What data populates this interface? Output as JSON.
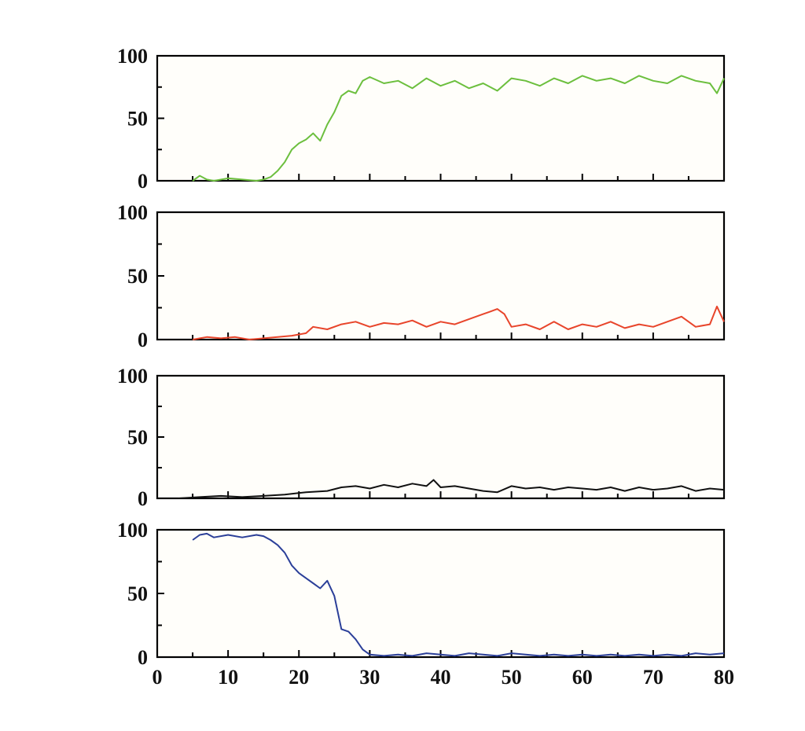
{
  "chart_data": [
    {
      "type": "line",
      "xlim": [
        0,
        80
      ],
      "ylim": [
        0,
        100
      ],
      "xlabel": "",
      "ylabel": "",
      "yticks": [
        "0",
        "50",
        "100"
      ],
      "grid": false,
      "series": [
        {
          "color": "#6cbf3e",
          "x": [
            5,
            6,
            7,
            8,
            10,
            12,
            14,
            15,
            16,
            17,
            18,
            19,
            20,
            21,
            22,
            23,
            24,
            25,
            26,
            27,
            28,
            29,
            30,
            32,
            34,
            36,
            38,
            40,
            42,
            44,
            46,
            48,
            50,
            52,
            54,
            56,
            58,
            60,
            62,
            64,
            66,
            68,
            70,
            72,
            74,
            76,
            78,
            79,
            80
          ],
          "y": [
            0,
            4,
            1,
            0,
            2,
            1,
            0,
            1,
            3,
            8,
            15,
            25,
            30,
            33,
            38,
            32,
            45,
            55,
            68,
            72,
            70,
            80,
            83,
            78,
            80,
            74,
            82,
            76,
            80,
            74,
            78,
            72,
            82,
            80,
            76,
            82,
            78,
            84,
            80,
            82,
            78,
            84,
            80,
            78,
            84,
            80,
            78,
            70,
            82
          ]
        }
      ]
    },
    {
      "type": "line",
      "xlim": [
        0,
        80
      ],
      "ylim": [
        0,
        100
      ],
      "xlabel": "",
      "ylabel": "",
      "yticks": [
        "0",
        "50",
        "100"
      ],
      "grid": false,
      "series": [
        {
          "color": "#e8452b",
          "x": [
            5,
            7,
            9,
            11,
            13,
            15,
            17,
            19,
            21,
            22,
            24,
            26,
            28,
            30,
            32,
            34,
            36,
            38,
            40,
            42,
            44,
            46,
            47,
            48,
            49,
            50,
            52,
            54,
            56,
            58,
            60,
            62,
            64,
            66,
            68,
            70,
            72,
            74,
            76,
            78,
            79,
            80
          ],
          "y": [
            0,
            2,
            1,
            2,
            0,
            1,
            2,
            3,
            5,
            10,
            8,
            12,
            14,
            10,
            13,
            12,
            15,
            10,
            14,
            12,
            16,
            20,
            22,
            24,
            20,
            10,
            12,
            8,
            14,
            8,
            12,
            10,
            14,
            9,
            12,
            10,
            14,
            18,
            10,
            12,
            26,
            14
          ]
        }
      ]
    },
    {
      "type": "line",
      "xlim": [
        0,
        80
      ],
      "ylim": [
        0,
        100
      ],
      "xlabel": "",
      "ylabel": "",
      "yticks": [
        "0",
        "50",
        "100"
      ],
      "grid": false,
      "series": [
        {
          "color": "#111111",
          "x": [
            3,
            6,
            9,
            12,
            15,
            18,
            21,
            24,
            26,
            28,
            30,
            32,
            34,
            36,
            38,
            39,
            40,
            42,
            44,
            46,
            48,
            50,
            52,
            54,
            56,
            58,
            60,
            62,
            64,
            66,
            68,
            70,
            72,
            74,
            76,
            78,
            80
          ],
          "y": [
            0,
            1,
            2,
            1,
            2,
            3,
            5,
            6,
            9,
            10,
            8,
            11,
            9,
            12,
            10,
            15,
            9,
            10,
            8,
            6,
            5,
            10,
            8,
            9,
            7,
            9,
            8,
            7,
            9,
            6,
            9,
            7,
            8,
            10,
            6,
            8,
            7
          ]
        }
      ]
    },
    {
      "type": "line",
      "xlim": [
        0,
        80
      ],
      "ylim": [
        0,
        100
      ],
      "xlabel": "",
      "ylabel": "",
      "xticks": [
        "0",
        "10",
        "20",
        "30",
        "40",
        "50",
        "60",
        "70",
        "80"
      ],
      "yticks": [
        "0",
        "50",
        "100"
      ],
      "grid": false,
      "series": [
        {
          "color": "#2b3f99",
          "x": [
            5,
            6,
            7,
            8,
            10,
            12,
            14,
            15,
            16,
            17,
            18,
            19,
            20,
            21,
            22,
            23,
            24,
            25,
            26,
            27,
            28,
            29,
            30,
            32,
            34,
            36,
            38,
            40,
            42,
            44,
            46,
            48,
            50,
            52,
            54,
            56,
            58,
            60,
            62,
            64,
            66,
            68,
            70,
            72,
            74,
            76,
            78,
            80
          ],
          "y": [
            92,
            96,
            97,
            94,
            96,
            94,
            96,
            95,
            92,
            88,
            82,
            72,
            66,
            62,
            58,
            54,
            60,
            48,
            22,
            20,
            14,
            6,
            2,
            1,
            2,
            1,
            3,
            2,
            1,
            3,
            2,
            1,
            3,
            2,
            1,
            2,
            1,
            2,
            1,
            2,
            1,
            2,
            1,
            2,
            1,
            3,
            2,
            3
          ]
        }
      ]
    }
  ]
}
